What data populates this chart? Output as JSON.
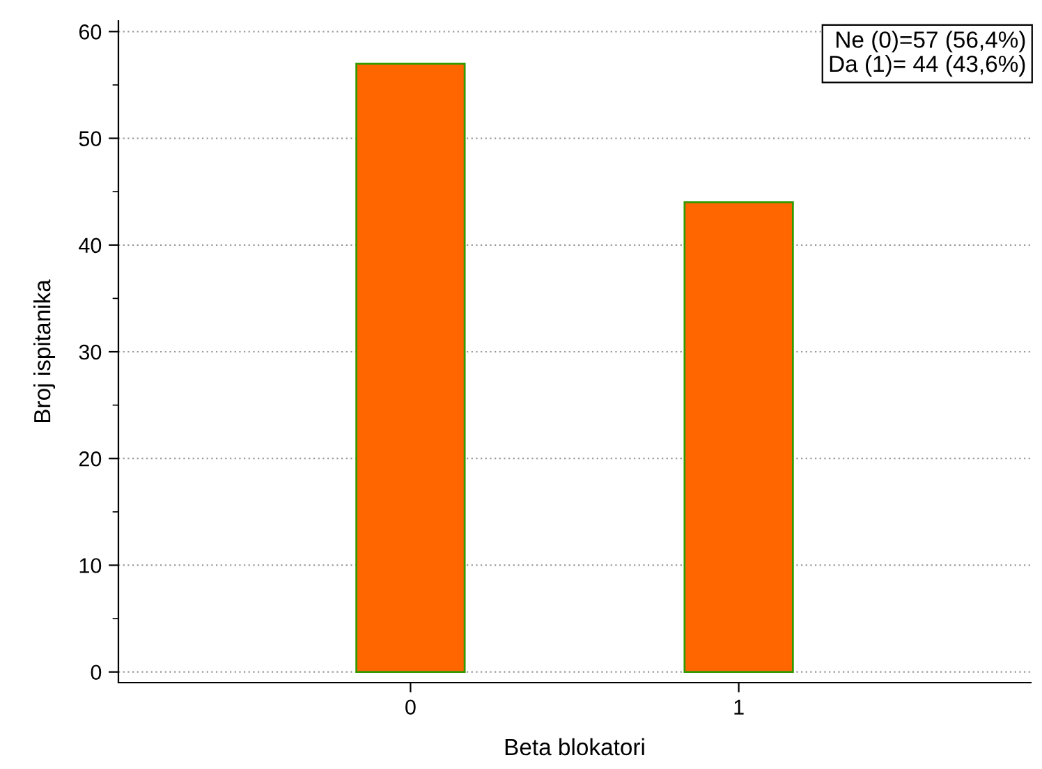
{
  "chart_data": {
    "type": "bar",
    "xlabel": "Beta blokatori",
    "ylabel": "Broj ispitanika",
    "categories": [
      "0",
      "1"
    ],
    "values": [
      57,
      44
    ],
    "color": "#ff6600",
    "ylim": [
      -1,
      61
    ],
    "yticks": [
      0,
      10,
      20,
      30,
      40,
      50,
      60
    ],
    "grid": "y",
    "annotations": [
      "Ne (0)=57 (56,4%)\nDa (1)= 44 (43,6%)"
    ]
  }
}
